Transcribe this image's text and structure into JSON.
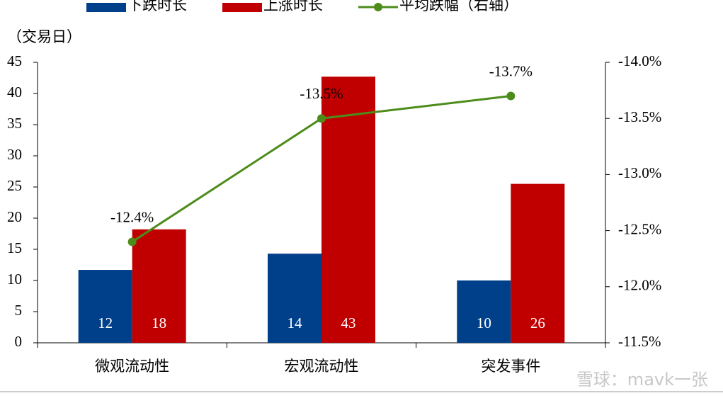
{
  "chart_data": {
    "type": "bar_line",
    "y_axis_label": "（交易日）",
    "categories": [
      "微观流动性",
      "宏观流动性",
      "突发事件"
    ],
    "series": [
      {
        "name": "下跌时长",
        "color": "#003f8a",
        "type": "bar",
        "values": [
          11.7,
          14.3,
          10
        ],
        "value_labels": [
          "12",
          "14",
          "10"
        ]
      },
      {
        "name": "上涨时长",
        "color": "#c00000",
        "type": "bar",
        "values": [
          18.2,
          42.7,
          25.5
        ],
        "value_labels": [
          "18",
          "43",
          "26"
        ]
      },
      {
        "name": "平均跌幅（右轴）",
        "color": "#4d8c1a",
        "type": "line",
        "axis": "y2",
        "values": [
          -12.4,
          -13.5,
          -13.7
        ],
        "value_labels": [
          "-12.4%",
          "-13.5%",
          "-13.7%"
        ]
      }
    ],
    "ylim": [
      0,
      45
    ],
    "yticks": [
      0,
      5,
      10,
      15,
      20,
      25,
      30,
      35,
      40,
      45
    ],
    "y2lim": [
      -11.5,
      -14.0
    ],
    "y2ticks": [
      {
        "value": -11.5,
        "label": "-11.5%"
      },
      {
        "value": -12.0,
        "label": "-12.0%"
      },
      {
        "value": -12.5,
        "label": "-12.5%"
      },
      {
        "value": -13.0,
        "label": "-13.0%"
      },
      {
        "value": -13.5,
        "label": "-13.5%"
      },
      {
        "value": -14.0,
        "label": "-14.0%"
      }
    ],
    "legend": "top",
    "watermark": "雪球：mavk一张"
  }
}
